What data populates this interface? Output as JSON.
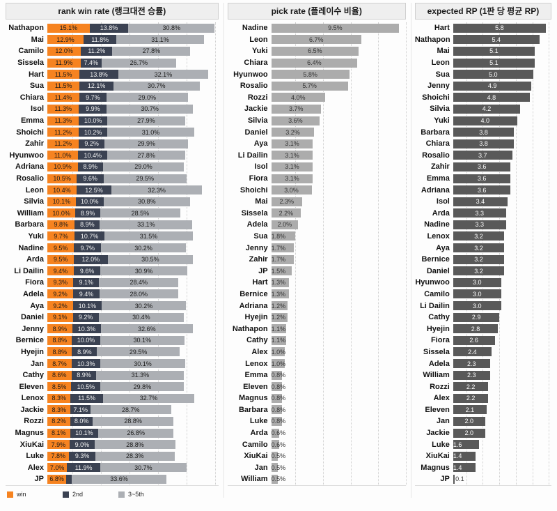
{
  "chart_data": [
    {
      "type": "bar",
      "subtype": "stacked-horizontal",
      "title": "rank win rate (랭크대전 승률)",
      "legend": [
        "win",
        "2nd",
        "3~5th"
      ],
      "legend_position": "bottom",
      "colors": {
        "win": "#F68320",
        "second": "#3B4252",
        "rest": "#ACAFB4"
      },
      "xmax": 61,
      "grid_step": 10,
      "grid": "dotted",
      "unit": "%",
      "rows": [
        {
          "name": "Nathapon",
          "win": 15.1,
          "second": 13.8,
          "rest": 30.8
        },
        {
          "name": "Mai",
          "win": 12.9,
          "second": 11.8,
          "rest": 31.1
        },
        {
          "name": "Camilo",
          "win": 12.0,
          "second": 11.2,
          "rest": 27.8
        },
        {
          "name": "Sissela",
          "win": 11.9,
          "second": 7.4,
          "rest": 26.7
        },
        {
          "name": "Hart",
          "win": 11.5,
          "second": 13.8,
          "rest": 32.1
        },
        {
          "name": "Sua",
          "win": 11.5,
          "second": 12.1,
          "rest": 30.7
        },
        {
          "name": "Chiara",
          "win": 11.4,
          "second": 9.7,
          "rest": 29.0
        },
        {
          "name": "Isol",
          "win": 11.3,
          "second": 9.9,
          "rest": 30.7
        },
        {
          "name": "Emma",
          "win": 11.3,
          "second": 10.0,
          "rest": 27.9
        },
        {
          "name": "Shoichi",
          "win": 11.2,
          "second": 10.2,
          "rest": 31.0
        },
        {
          "name": "Zahir",
          "win": 11.2,
          "second": 9.2,
          "rest": 29.9
        },
        {
          "name": "Hyunwoo",
          "win": 11.0,
          "second": 10.4,
          "rest": 27.8
        },
        {
          "name": "Adriana",
          "win": 10.9,
          "second": 8.9,
          "rest": 29.0
        },
        {
          "name": "Rosalio",
          "win": 10.5,
          "second": 9.6,
          "rest": 29.5
        },
        {
          "name": "Leon",
          "win": 10.4,
          "second": 12.5,
          "rest": 32.3
        },
        {
          "name": "Silvia",
          "win": 10.1,
          "second": 10.0,
          "rest": 30.8
        },
        {
          "name": "William",
          "win": 10.0,
          "second": 8.9,
          "rest": 28.5
        },
        {
          "name": "Barbara",
          "win": 9.8,
          "second": 8.9,
          "rest": 33.1
        },
        {
          "name": "Yuki",
          "win": 9.7,
          "second": 10.7,
          "rest": 31.5
        },
        {
          "name": "Nadine",
          "win": 9.5,
          "second": 9.7,
          "rest": 30.2
        },
        {
          "name": "Arda",
          "win": 9.5,
          "second": 12.0,
          "rest": 30.5
        },
        {
          "name": "Li Dailin",
          "win": 9.4,
          "second": 9.6,
          "rest": 30.9
        },
        {
          "name": "Fiora",
          "win": 9.3,
          "second": 9.1,
          "rest": 28.4
        },
        {
          "name": "Adela",
          "win": 9.2,
          "second": 9.4,
          "rest": 28.0
        },
        {
          "name": "Aya",
          "win": 9.2,
          "second": 10.1,
          "rest": 30.2
        },
        {
          "name": "Daniel",
          "win": 9.1,
          "second": 9.2,
          "rest": 30.4
        },
        {
          "name": "Jenny",
          "win": 8.9,
          "second": 10.3,
          "rest": 32.6
        },
        {
          "name": "Bernice",
          "win": 8.8,
          "second": 10.0,
          "rest": 30.1
        },
        {
          "name": "Hyejin",
          "win": 8.8,
          "second": 8.9,
          "rest": 29.5
        },
        {
          "name": "Jan",
          "win": 8.7,
          "second": 10.3,
          "rest": 30.1
        },
        {
          "name": "Cathy",
          "win": 8.6,
          "second": 8.9,
          "rest": 31.3
        },
        {
          "name": "Eleven",
          "win": 8.5,
          "second": 10.5,
          "rest": 29.8
        },
        {
          "name": "Lenox",
          "win": 8.3,
          "second": 11.5,
          "rest": 32.7
        },
        {
          "name": "Jackie",
          "win": 8.3,
          "second": 7.1,
          "rest": 28.7
        },
        {
          "name": "Rozzi",
          "win": 8.2,
          "second": 8.0,
          "rest": 28.8
        },
        {
          "name": "Magnus",
          "win": 8.1,
          "second": 10.1,
          "rest": 26.8
        },
        {
          "name": "XiuKai",
          "win": 7.9,
          "second": 9.0,
          "rest": 28.8
        },
        {
          "name": "Luke",
          "win": 7.8,
          "second": 9.3,
          "rest": 28.3
        },
        {
          "name": "Alex",
          "win": 7.0,
          "second": 11.9,
          "rest": 30.7
        },
        {
          "name": "JP",
          "win": 6.8,
          "second": 2.0,
          "rest": 33.6,
          "second_label_shown": false
        }
      ]
    },
    {
      "type": "bar",
      "subtype": "horizontal",
      "title": "pick rate (플레이수 비율)",
      "bar_color": "#ACACAC",
      "label_color": "#333333",
      "xmax": 10,
      "grid_step": 2,
      "grid": "dotted",
      "unit": "%",
      "rows": [
        {
          "name": "Nadine",
          "value": 9.5
        },
        {
          "name": "Leon",
          "value": 6.7
        },
        {
          "name": "Yuki",
          "value": 6.5
        },
        {
          "name": "Chiara",
          "value": 6.4
        },
        {
          "name": "Hyunwoo",
          "value": 5.8
        },
        {
          "name": "Rosalio",
          "value": 5.7
        },
        {
          "name": "Rozzi",
          "value": 4.0
        },
        {
          "name": "Jackie",
          "value": 3.7
        },
        {
          "name": "Silvia",
          "value": 3.6
        },
        {
          "name": "Daniel",
          "value": 3.2
        },
        {
          "name": "Aya",
          "value": 3.1
        },
        {
          "name": "Li Dailin",
          "value": 3.1
        },
        {
          "name": "Isol",
          "value": 3.1
        },
        {
          "name": "Fiora",
          "value": 3.1
        },
        {
          "name": "Shoichi",
          "value": 3.0
        },
        {
          "name": "Mai",
          "value": 2.3
        },
        {
          "name": "Sissela",
          "value": 2.2
        },
        {
          "name": "Adela",
          "value": 2.0
        },
        {
          "name": "Sua",
          "value": 1.8
        },
        {
          "name": "Jenny",
          "value": 1.7
        },
        {
          "name": "Zahir",
          "value": 1.7
        },
        {
          "name": "JP",
          "value": 1.5
        },
        {
          "name": "Hart",
          "value": 1.3
        },
        {
          "name": "Bernice",
          "value": 1.3
        },
        {
          "name": "Adriana",
          "value": 1.2
        },
        {
          "name": "Hyejin",
          "value": 1.2
        },
        {
          "name": "Nathapon",
          "value": 1.1
        },
        {
          "name": "Cathy",
          "value": 1.1
        },
        {
          "name": "Alex",
          "value": 1.0
        },
        {
          "name": "Lenox",
          "value": 1.0
        },
        {
          "name": "Emma",
          "value": 0.8
        },
        {
          "name": "Eleven",
          "value": 0.8
        },
        {
          "name": "Magnus",
          "value": 0.8
        },
        {
          "name": "Barbara",
          "value": 0.8
        },
        {
          "name": "Luke",
          "value": 0.8
        },
        {
          "name": "Arda",
          "value": 0.6
        },
        {
          "name": "Camilo",
          "value": 0.6
        },
        {
          "name": "XiuKai",
          "value": 0.5
        },
        {
          "name": "Jan",
          "value": 0.5
        },
        {
          "name": "William",
          "value": 0.5
        }
      ]
    },
    {
      "type": "bar",
      "subtype": "horizontal",
      "title": "expected RP (1판 당 평균 RP)",
      "bar_color": "#595959",
      "label_color": "#FFFFFF",
      "xmax": 6.15,
      "grid_step": 1,
      "grid": "dotted",
      "unit": "",
      "rows": [
        {
          "name": "Hart",
          "value": 5.8
        },
        {
          "name": "Nathapon",
          "value": 5.4
        },
        {
          "name": "Mai",
          "value": 5.1
        },
        {
          "name": "Leon",
          "value": 5.1
        },
        {
          "name": "Sua",
          "value": 5.0
        },
        {
          "name": "Jenny",
          "value": 4.9
        },
        {
          "name": "Shoichi",
          "value": 4.8
        },
        {
          "name": "Silvia",
          "value": 4.2
        },
        {
          "name": "Yuki",
          "value": 4.0
        },
        {
          "name": "Barbara",
          "value": 3.8
        },
        {
          "name": "Chiara",
          "value": 3.8
        },
        {
          "name": "Rosalio",
          "value": 3.7
        },
        {
          "name": "Zahir",
          "value": 3.6
        },
        {
          "name": "Emma",
          "value": 3.6
        },
        {
          "name": "Adriana",
          "value": 3.6
        },
        {
          "name": "Isol",
          "value": 3.4
        },
        {
          "name": "Arda",
          "value": 3.3
        },
        {
          "name": "Nadine",
          "value": 3.3
        },
        {
          "name": "Lenox",
          "value": 3.2
        },
        {
          "name": "Aya",
          "value": 3.2
        },
        {
          "name": "Bernice",
          "value": 3.2
        },
        {
          "name": "Daniel",
          "value": 3.2
        },
        {
          "name": "Hyunwoo",
          "value": 3.0
        },
        {
          "name": "Camilo",
          "value": 3.0
        },
        {
          "name": "Li Dailin",
          "value": 3.0
        },
        {
          "name": "Cathy",
          "value": 2.9
        },
        {
          "name": "Hyejin",
          "value": 2.8
        },
        {
          "name": "Fiora",
          "value": 2.6
        },
        {
          "name": "Sissela",
          "value": 2.4
        },
        {
          "name": "Adela",
          "value": 2.3
        },
        {
          "name": "William",
          "value": 2.3
        },
        {
          "name": "Rozzi",
          "value": 2.2
        },
        {
          "name": "Alex",
          "value": 2.2
        },
        {
          "name": "Eleven",
          "value": 2.1
        },
        {
          "name": "Jan",
          "value": 2.0
        },
        {
          "name": "Jackie",
          "value": 2.0
        },
        {
          "name": "Luke",
          "value": 1.6
        },
        {
          "name": "XiuKai",
          "value": 1.4
        },
        {
          "name": "Magnus",
          "value": 1.4
        },
        {
          "name": "JP",
          "value": 0.1
        }
      ]
    }
  ]
}
